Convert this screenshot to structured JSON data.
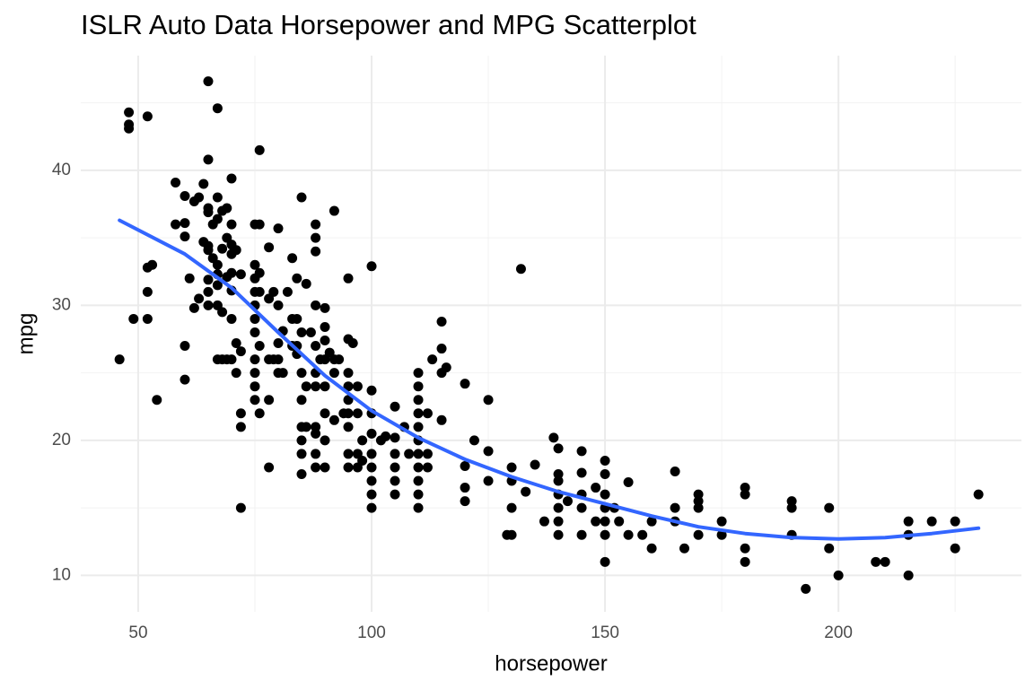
{
  "chart_data": {
    "type": "scatter",
    "title": "ISLR Auto Data Horsepower and MPG Scatterplot",
    "x_label": "horsepower",
    "y_label": "mpg",
    "xlim": [
      37.7,
      239.2
    ],
    "ylim": [
      7.3,
      48.5
    ],
    "xticks": [
      50,
      100,
      150,
      200
    ],
    "yticks": [
      10,
      20,
      30,
      40
    ],
    "x_minor_ticks": [
      75,
      125,
      175,
      225
    ],
    "y_minor_ticks": [
      15,
      25,
      35,
      45
    ],
    "grid": true,
    "color": "#000000",
    "x": [
      46,
      48,
      48,
      48,
      49,
      52,
      52,
      52,
      52,
      53,
      54,
      58,
      58,
      60,
      60,
      60,
      60,
      60,
      61,
      62,
      62,
      63,
      63,
      64,
      64,
      65,
      65,
      65,
      65,
      65,
      65,
      65,
      65,
      65,
      66,
      66,
      67,
      67,
      67,
      67,
      67,
      67,
      67,
      67,
      68,
      68,
      68,
      68,
      69,
      69,
      69,
      69,
      70,
      70,
      70,
      70,
      70,
      70,
      70,
      70,
      71,
      71,
      71,
      72,
      72,
      72,
      72,
      72,
      75,
      75,
      75,
      75,
      75,
      75,
      75,
      75,
      75,
      75,
      75,
      76,
      76,
      76,
      76,
      76,
      76,
      78,
      78,
      78,
      78,
      78,
      79,
      79,
      80,
      80,
      80,
      80,
      80,
      81,
      81,
      82,
      83,
      83,
      83,
      84,
      84,
      84,
      84,
      85,
      85,
      85,
      85,
      85,
      85,
      85,
      85,
      86,
      86,
      86,
      87,
      88,
      88,
      88,
      88,
      88,
      88,
      88,
      88,
      88,
      88,
      88,
      89,
      90,
      90,
      90,
      90,
      90,
      90,
      90,
      90,
      91,
      92,
      92,
      92,
      92,
      93,
      94,
      95,
      95,
      95,
      95,
      95,
      95,
      95,
      95,
      95,
      96,
      97,
      97,
      97,
      97,
      98,
      98,
      100,
      100,
      100,
      100,
      100,
      100,
      100,
      100,
      100,
      102,
      103,
      105,
      105,
      105,
      105,
      105,
      105,
      107,
      108,
      110,
      110,
      110,
      110,
      110,
      110,
      110,
      110,
      110,
      110,
      110,
      112,
      112,
      112,
      113,
      115,
      115,
      115,
      115,
      116,
      120,
      120,
      120,
      120,
      122,
      125,
      125,
      125,
      129,
      130,
      130,
      130,
      130,
      132,
      133,
      135,
      137,
      139,
      140,
      140,
      140,
      140,
      140,
      140,
      140,
      142,
      145,
      145,
      145,
      145,
      145,
      148,
      148,
      150,
      150,
      150,
      150,
      150,
      150,
      150,
      152,
      153,
      155,
      155,
      158,
      160,
      160,
      165,
      165,
      165,
      167,
      170,
      170,
      170,
      170,
      175,
      175,
      180,
      180,
      180,
      180,
      190,
      190,
      190,
      193,
      198,
      198,
      200,
      208,
      210,
      215,
      215,
      215,
      220,
      225,
      225,
      230
    ],
    "values": [
      26,
      44.3,
      43.4,
      43.1,
      29,
      44,
      32.8,
      31,
      29,
      33,
      23,
      39.1,
      36,
      38.1,
      36.1,
      35.1,
      27,
      24.5,
      32,
      37.7,
      29.8,
      38,
      30.5,
      39,
      34.7,
      46.6,
      40.8,
      37.2,
      36.9,
      34.4,
      34.1,
      31.9,
      31,
      30,
      36,
      33.5,
      44.6,
      38,
      36.4,
      33,
      32.3,
      31.5,
      30,
      26,
      37,
      34.2,
      29.5,
      26,
      37.2,
      35,
      32.1,
      26,
      39.4,
      36,
      34.5,
      33.8,
      32.4,
      31.1,
      29,
      26,
      34.1,
      27.2,
      25,
      22,
      21,
      15,
      32.3,
      26.6,
      36,
      33,
      32,
      30,
      29,
      28,
      26,
      24,
      25,
      23,
      31,
      36,
      41.5,
      32.4,
      31,
      27,
      22,
      34.3,
      30.5,
      26,
      23,
      18,
      31,
      26,
      35.7,
      30,
      27.2,
      26,
      25,
      28.1,
      25,
      31,
      33.5,
      29,
      27,
      32,
      29,
      27,
      26.4,
      38,
      28,
      25,
      23,
      21,
      20,
      19,
      17.5,
      31.6,
      24,
      21,
      28,
      36,
      35,
      34,
      30,
      27,
      25,
      24,
      21,
      20.5,
      19,
      18,
      26,
      29.8,
      28.4,
      27.4,
      26,
      24,
      22,
      20,
      18,
      26.5,
      37,
      26,
      25,
      21.5,
      26,
      22,
      32,
      27.5,
      25,
      24,
      23,
      22,
      21,
      19,
      18,
      27.2,
      24,
      22,
      19,
      18,
      20,
      18.5,
      32.9,
      23.7,
      22,
      20.5,
      19,
      18,
      17,
      16,
      15,
      20,
      20.3,
      22.5,
      20.2,
      19,
      18,
      17,
      16,
      21,
      19,
      25,
      24,
      23,
      22,
      21,
      20,
      19,
      18,
      17,
      16,
      15,
      22,
      19,
      18,
      26,
      28.8,
      26.8,
      25,
      21.5,
      25.4,
      24.2,
      18.1,
      16.5,
      15.5,
      20,
      23,
      19.2,
      17,
      13,
      18,
      17,
      15,
      13,
      32.7,
      16.2,
      18.2,
      14,
      20.2,
      19.4,
      17.5,
      17,
      16,
      15,
      14,
      13,
      15.5,
      19.2,
      17.6,
      16,
      15,
      13,
      16.5,
      14,
      18.5,
      17.5,
      16,
      15,
      14,
      13,
      11,
      15,
      14,
      16.9,
      13,
      13,
      14,
      12,
      17.7,
      15,
      14,
      12,
      16,
      15.5,
      15,
      13,
      14,
      13,
      16.5,
      16,
      12,
      11,
      15.5,
      15,
      13,
      9,
      15,
      12,
      10,
      11,
      11,
      14,
      13,
      10,
      14,
      14,
      12,
      16
    ],
    "smooth": {
      "color": "#3366ff",
      "x": [
        46,
        60,
        70,
        80,
        90,
        100,
        110,
        120,
        130,
        140,
        150,
        160,
        170,
        180,
        190,
        200,
        210,
        220,
        230
      ],
      "values": [
        36.3,
        33.8,
        31.3,
        28,
        24.8,
        22.2,
        20.2,
        18.6,
        17.3,
        16.2,
        15.3,
        14.4,
        13.6,
        13.1,
        12.8,
        12.7,
        12.8,
        13.1,
        13.5
      ]
    }
  }
}
